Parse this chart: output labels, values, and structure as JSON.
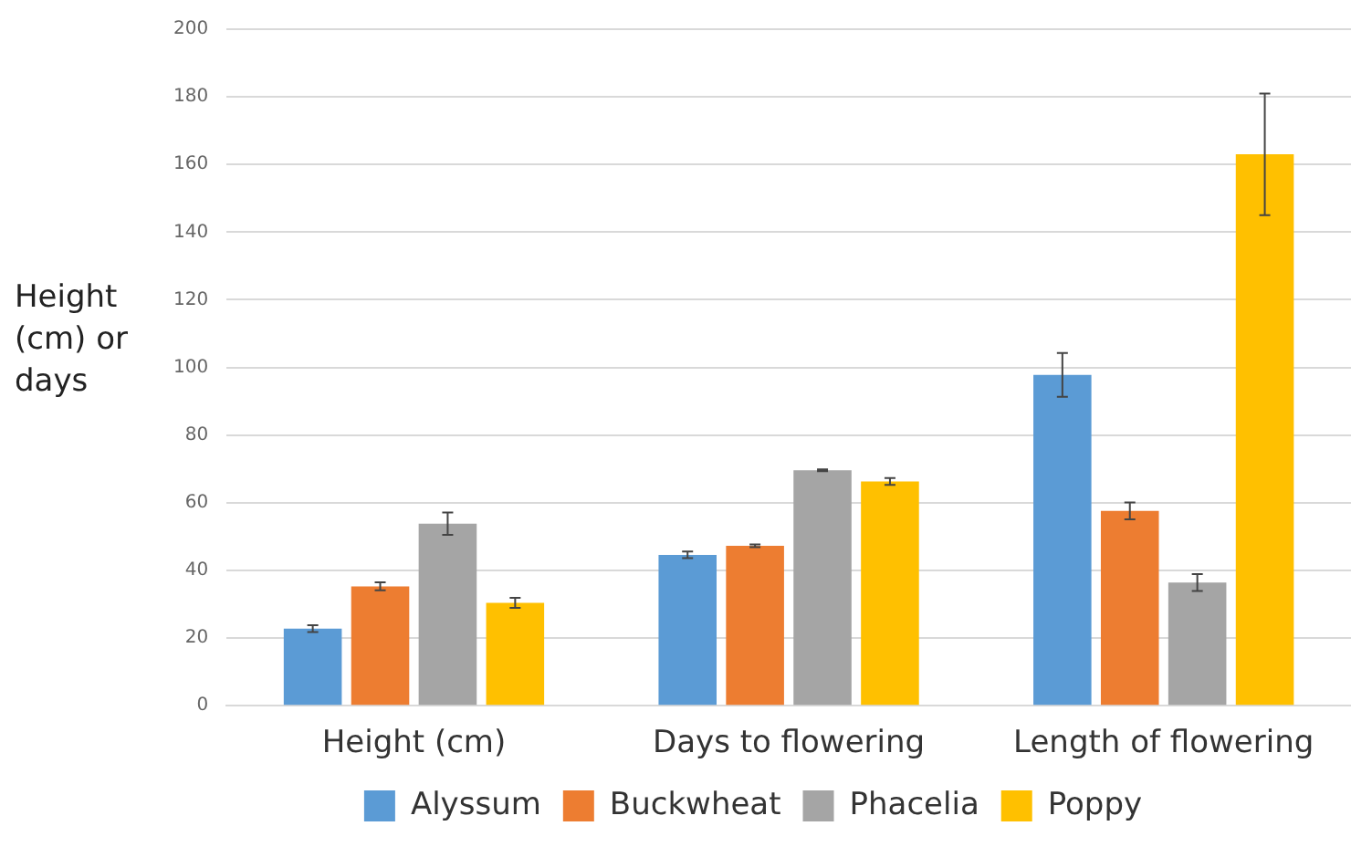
{
  "chart_data": {
    "type": "bar",
    "ylabel": "Height (cm) or days",
    "categories": [
      "Height (cm)",
      "Days to flowering",
      "Length of flowering"
    ],
    "series": [
      {
        "name": "Alyssum",
        "color": "#5b9bd5",
        "values": [
          22.8,
          44.6,
          97.8
        ],
        "errors": [
          1,
          1,
          6.5
        ]
      },
      {
        "name": "Buckwheat",
        "color": "#ed7d31",
        "values": [
          35.3,
          47.3,
          57.6
        ],
        "errors": [
          1.2,
          0.4,
          2.5
        ]
      },
      {
        "name": "Phacelia",
        "color": "#a5a5a5",
        "values": [
          53.8,
          69.6,
          36.4
        ],
        "errors": [
          3.3,
          0.3,
          2.5
        ]
      },
      {
        "name": "Poppy",
        "color": "#ffc000",
        "values": [
          30.4,
          66.3,
          163
        ],
        "errors": [
          1.5,
          1,
          18
        ]
      }
    ],
    "ylim": [
      0,
      200
    ],
    "yticks": [
      0,
      20,
      40,
      60,
      80,
      100,
      120,
      140,
      160,
      180,
      200
    ],
    "grid": "y",
    "legend": "bottom"
  }
}
